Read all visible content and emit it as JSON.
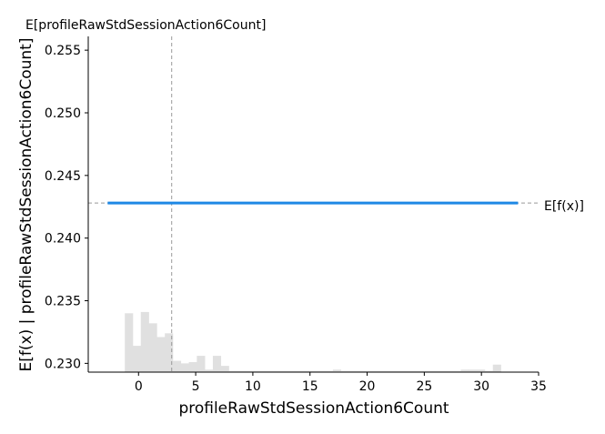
{
  "chart_data": {
    "type": "line",
    "xlabel": "profileRawStdSessionAction6Count",
    "ylabel": "E[f(x) | profileRawStdSessionAction6Count]",
    "top_label": "E[profileRawStdSessionAction6Count]",
    "ref_label": "E[f(x)]",
    "xlim": [
      -4.4,
      35.0
    ],
    "ylim": [
      0.2293,
      0.2561
    ],
    "x_ticks": [
      0,
      5,
      10,
      15,
      20,
      25,
      30,
      35
    ],
    "y_ticks": [
      0.23,
      0.235,
      0.24,
      0.245,
      0.25,
      0.255
    ],
    "x_tick_labels": [
      "0",
      "5",
      "10",
      "15",
      "20",
      "25",
      "30",
      "35"
    ],
    "y_tick_labels": [
      "0.230",
      "0.235",
      "0.240",
      "0.245",
      "0.250",
      "0.255"
    ],
    "expected_value": 0.2428,
    "feature_mean": 2.9,
    "series": [
      {
        "x": [
          -2.7,
          33.2
        ],
        "y": [
          0.2428,
          0.2428
        ],
        "color": "#1e88e5"
      }
    ],
    "histogram": {
      "color": "#e0e0e0",
      "bin_edges": [
        -1.2,
        -0.5,
        0.2,
        0.9,
        1.6,
        2.3,
        3.0,
        3.7,
        4.4,
        5.1,
        5.8,
        6.5,
        7.2,
        7.9,
        8.6,
        9.3,
        10.0,
        10.7,
        11.4,
        12.1,
        12.8,
        13.5,
        14.2,
        14.9,
        15.6,
        16.3,
        17.0,
        17.7,
        18.4,
        19.1,
        19.8,
        20.5,
        21.2,
        21.9,
        22.6,
        23.3,
        24.0,
        24.7,
        25.4,
        26.1,
        26.8,
        27.5,
        28.2,
        28.9,
        29.6,
        30.3,
        31.0,
        31.7
      ],
      "heights": [
        0.234,
        0.2314,
        0.2341,
        0.2332,
        0.2321,
        0.2324,
        0.2302,
        0.23,
        0.2301,
        0.2306,
        0.2295,
        0.2306,
        0.2298,
        0.2294,
        0.2294,
        0.2294,
        0.2294,
        0.2294,
        0.2294,
        0.2294,
        0.2294,
        0.2294,
        0.2294,
        0.2294,
        0.2294,
        0.2294,
        0.2295,
        0.2294,
        0.2294,
        0.2294,
        0.2294,
        0.2294,
        0.2294,
        0.2294,
        0.2294,
        0.2294,
        0.2294,
        0.2294,
        0.2294,
        0.2294,
        0.2294,
        0.2294,
        0.2295,
        0.2295,
        0.2295,
        0.2294,
        0.2299
      ]
    }
  }
}
